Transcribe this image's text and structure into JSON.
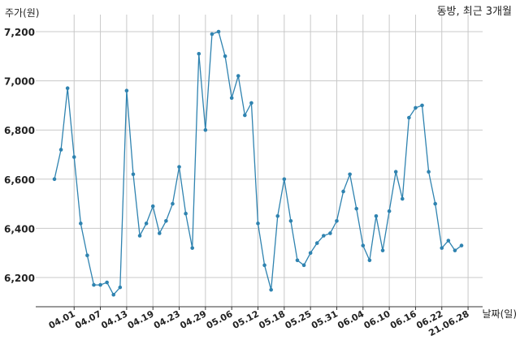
{
  "chart_data": {
    "type": "line",
    "title": "동방, 최근 3개월",
    "ylabel": "주가(원)",
    "xlabel": "날짜(일)",
    "ylim": [
      6080,
      7260
    ],
    "yticks": [
      6200,
      6400,
      6600,
      6800,
      7000,
      7200
    ],
    "ytick_labels": [
      "6,200",
      "6,400",
      "6,600",
      "6,800",
      "7,000",
      "7,200"
    ],
    "grid": true,
    "line_color": "#2f83b0",
    "grid_color": "#c8c8c8",
    "xticks": [
      {
        "label": "04.01",
        "index": 3
      },
      {
        "label": "04.07",
        "index": 7
      },
      {
        "label": "04.13",
        "index": 11
      },
      {
        "label": "04.19",
        "index": 15
      },
      {
        "label": "04.23",
        "index": 19
      },
      {
        "label": "04.29",
        "index": 23
      },
      {
        "label": "05.06",
        "index": 27
      },
      {
        "label": "05.12",
        "index": 31
      },
      {
        "label": "05.18",
        "index": 35
      },
      {
        "label": "05.25",
        "index": 39
      },
      {
        "label": "05.31",
        "index": 43
      },
      {
        "label": "06.04",
        "index": 47
      },
      {
        "label": "06.10",
        "index": 51
      },
      {
        "label": "06.16",
        "index": 55
      },
      {
        "label": "06.22",
        "index": 59
      },
      {
        "label": "21.06.28",
        "index": 63
      }
    ],
    "values": [
      6600,
      6720,
      6970,
      6690,
      6420,
      6290,
      6170,
      6170,
      6180,
      6130,
      6160,
      6960,
      6620,
      6370,
      6420,
      6490,
      6380,
      6430,
      6500,
      6650,
      6460,
      6320,
      7110,
      6800,
      7190,
      7200,
      7100,
      6930,
      7020,
      6860,
      6910,
      6420,
      6250,
      6150,
      6450,
      6600,
      6430,
      6270,
      6250,
      6300,
      6340,
      6370,
      6380,
      6430,
      6550,
      6620,
      6480,
      6330,
      6270,
      6450,
      6310,
      6470,
      6630,
      6520,
      6850,
      6890,
      6900,
      6630,
      6500,
      6320,
      6350,
      6310,
      6330
    ]
  }
}
